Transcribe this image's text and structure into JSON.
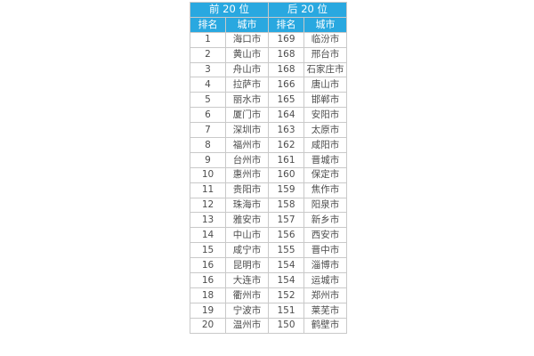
{
  "chart_data": {
    "type": "table",
    "group_headers": [
      "前 20 位",
      "后 20 位"
    ],
    "columns": [
      "排名",
      "城市",
      "排名",
      "城市"
    ],
    "rows": [
      [
        "1",
        "海口市",
        "169",
        "临汾市"
      ],
      [
        "2",
        "黄山市",
        "168",
        "邢台市"
      ],
      [
        "3",
        "舟山市",
        "168",
        "石家庄市"
      ],
      [
        "4",
        "拉萨市",
        "166",
        "唐山市"
      ],
      [
        "5",
        "丽水市",
        "165",
        "邯郸市"
      ],
      [
        "6",
        "厦门市",
        "164",
        "安阳市"
      ],
      [
        "7",
        "深圳市",
        "163",
        "太原市"
      ],
      [
        "8",
        "福州市",
        "162",
        "咸阳市"
      ],
      [
        "9",
        "台州市",
        "161",
        "晋城市"
      ],
      [
        "10",
        "惠州市",
        "160",
        "保定市"
      ],
      [
        "11",
        "贵阳市",
        "159",
        "焦作市"
      ],
      [
        "12",
        "珠海市",
        "158",
        "阳泉市"
      ],
      [
        "13",
        "雅安市",
        "157",
        "新乡市"
      ],
      [
        "14",
        "中山市",
        "156",
        "西安市"
      ],
      [
        "15",
        "咸宁市",
        "155",
        "晋中市"
      ],
      [
        "16",
        "昆明市",
        "154",
        "淄博市"
      ],
      [
        "16",
        "大连市",
        "154",
        "运城市"
      ],
      [
        "18",
        "衢州市",
        "152",
        "郑州市"
      ],
      [
        "19",
        "宁波市",
        "151",
        "莱芜市"
      ],
      [
        "20",
        "温州市",
        "150",
        "鹤壁市"
      ]
    ],
    "layout_hints": {
      "legend": "none",
      "grid": "full-borders",
      "alignment": "centered"
    },
    "colors": {
      "header_bg": "#29a8e0",
      "header_text": "#ffffff",
      "body_text": "#4d4d4d",
      "border": "#c9c9c9",
      "background": "#ffffff"
    }
  }
}
